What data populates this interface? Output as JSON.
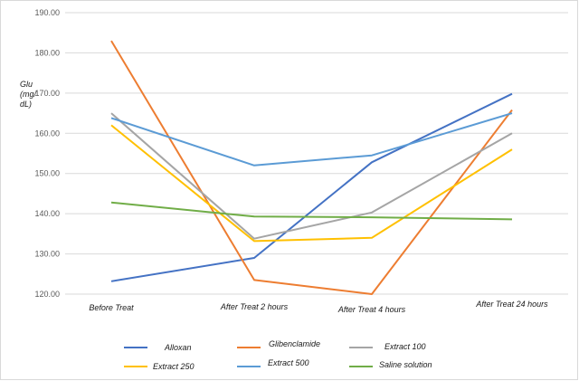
{
  "chart_data": {
    "type": "line",
    "ylabel_lines": [
      "Glu",
      "(mg/",
      "dL)"
    ],
    "ylim": [
      120,
      190
    ],
    "yticks": [
      "120.00",
      "130.00",
      "140.00",
      "150.00",
      "160.00",
      "170.00",
      "180.00",
      "190.00"
    ],
    "ytick_values": [
      120,
      130,
      140,
      150,
      160,
      170,
      180,
      190
    ],
    "grid": true,
    "legend_position": "bottom",
    "categories": [
      "Before Treat",
      "After Treat 2 hours",
      "After Treat 4 hours",
      "After Treat 24 hours"
    ],
    "series": [
      {
        "name": "Alloxan",
        "color": "#4472c4",
        "values": [
          123.2,
          129.0,
          152.8,
          169.8
        ]
      },
      {
        "name": "Glibenclamide",
        "color": "#ed7d31",
        "values": [
          183.0,
          123.5,
          120.0,
          165.8
        ]
      },
      {
        "name": "Extract 100",
        "color": "#a5a5a5",
        "values": [
          165.0,
          133.8,
          140.3,
          160.0
        ]
      },
      {
        "name": "Extract 250",
        "color": "#ffc000",
        "values": [
          162.0,
          133.2,
          134.0,
          156.0
        ]
      },
      {
        "name": "Extract 500",
        "color": "#5b9bd5",
        "values": [
          163.8,
          152.0,
          154.5,
          165.0
        ]
      },
      {
        "name": "Saline solution",
        "color": "#70ad47",
        "values": [
          142.8,
          139.3,
          139.1,
          138.6
        ]
      }
    ]
  }
}
